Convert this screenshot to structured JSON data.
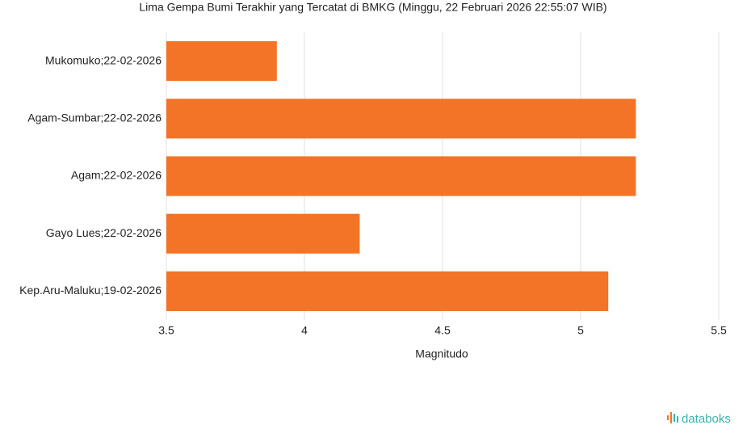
{
  "chart_data": {
    "type": "bar",
    "orientation": "horizontal",
    "title": "Lima Gempa Bumi Terakhir yang Tercatat di BMKG (Minggu, 22 Februari 2026 22:55:07 WIB)",
    "x_label": "Magnitudo",
    "categories": [
      "Mukomuko;22-02-2026",
      "Agam-Sumbar;22-02-2026",
      "Agam;22-02-2026",
      "Gayo Lues;22-02-2026",
      "Kep.Aru-Maluku;19-02-2026"
    ],
    "values": [
      3.9,
      5.2,
      5.2,
      4.2,
      5.1
    ],
    "color": "#f37327",
    "xlim": [
      3.5,
      5.5
    ],
    "xticks": [
      3.5,
      4,
      4.5,
      5,
      5.5
    ],
    "grid": true,
    "logo": "databoks"
  }
}
